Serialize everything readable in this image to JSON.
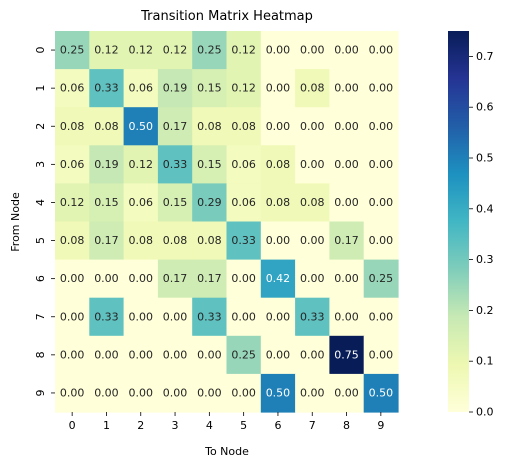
{
  "chart_data": {
    "type": "heatmap",
    "title": "Transition Matrix Heatmap",
    "xlabel": "To Node",
    "ylabel": "From Node",
    "x_categories": [
      "0",
      "1",
      "2",
      "3",
      "4",
      "5",
      "6",
      "7",
      "8",
      "9"
    ],
    "y_categories": [
      "0",
      "1",
      "2",
      "3",
      "4",
      "5",
      "6",
      "7",
      "8",
      "9"
    ],
    "values": [
      [
        0.25,
        0.12,
        0.12,
        0.12,
        0.25,
        0.12,
        0.0,
        0.0,
        0.0,
        0.0
      ],
      [
        0.06,
        0.33,
        0.06,
        0.19,
        0.15,
        0.12,
        0.0,
        0.08,
        0.0,
        0.0
      ],
      [
        0.08,
        0.08,
        0.5,
        0.17,
        0.08,
        0.08,
        0.0,
        0.0,
        0.0,
        0.0
      ],
      [
        0.06,
        0.19,
        0.12,
        0.33,
        0.15,
        0.06,
        0.08,
        0.0,
        0.0,
        0.0
      ],
      [
        0.12,
        0.15,
        0.06,
        0.15,
        0.29,
        0.06,
        0.08,
        0.08,
        0.0,
        0.0
      ],
      [
        0.08,
        0.17,
        0.08,
        0.08,
        0.08,
        0.33,
        0.0,
        0.0,
        0.17,
        0.0
      ],
      [
        0.0,
        0.0,
        0.0,
        0.17,
        0.17,
        0.0,
        0.42,
        0.0,
        0.0,
        0.25
      ],
      [
        0.0,
        0.33,
        0.0,
        0.0,
        0.33,
        0.0,
        0.0,
        0.33,
        0.0,
        0.0
      ],
      [
        0.0,
        0.0,
        0.0,
        0.0,
        0.0,
        0.25,
        0.0,
        0.0,
        0.75,
        0.0
      ],
      [
        0.0,
        0.0,
        0.0,
        0.0,
        0.0,
        0.0,
        0.5,
        0.0,
        0.0,
        0.5
      ]
    ],
    "colormap": "YlGnBu",
    "value_range": [
      0,
      0.75
    ],
    "colorbar_ticks": [
      "0.0",
      "0.1",
      "0.2",
      "0.3",
      "0.4",
      "0.5",
      "0.6",
      "0.7"
    ],
    "annotate_format": "2 decimals",
    "grid": false,
    "legend": "colorbar-right"
  }
}
